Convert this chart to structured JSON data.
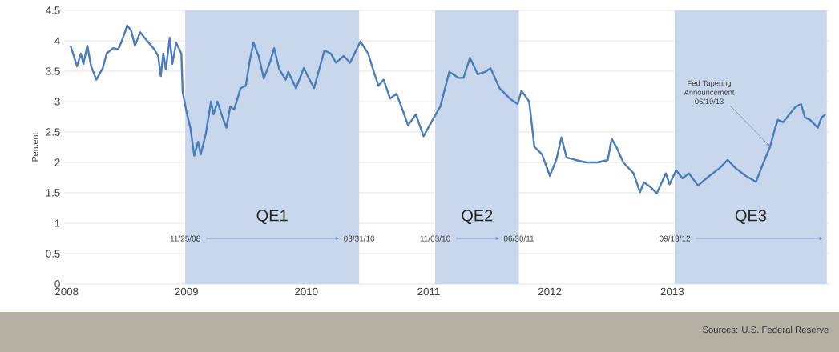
{
  "chart_data": {
    "type": "line",
    "ylabel": "Percent",
    "x": [
      2008.01,
      2008.06,
      2008.09,
      2008.11,
      2008.14,
      2008.17,
      2008.21,
      2008.26,
      2008.29,
      2008.34,
      2008.38,
      2008.41,
      2008.45,
      2008.48,
      2008.51,
      2008.55,
      2008.6,
      2008.66,
      2008.69,
      2008.71,
      2008.73,
      2008.75,
      2008.78,
      2008.8,
      2008.83,
      2008.87,
      2008.88,
      2008.91,
      2008.94,
      2008.97,
      2009.0,
      2009.02,
      2009.06,
      2009.1,
      2009.12,
      2009.15,
      2009.19,
      2009.22,
      2009.25,
      2009.28,
      2009.33,
      2009.37,
      2009.4,
      2009.43,
      2009.47,
      2009.51,
      2009.56,
      2009.59,
      2009.63,
      2009.68,
      2009.7,
      2009.76,
      2009.82,
      2009.9,
      2009.98,
      2010.03,
      2010.07,
      2010.13,
      2010.18,
      2010.26,
      2010.32,
      2010.37,
      2010.4,
      2010.44,
      2010.49,
      2010.54,
      2010.57,
      2010.63,
      2010.69,
      2010.75,
      2010.82,
      2010.88,
      2010.95,
      2011.02,
      2011.06,
      2011.11,
      2011.17,
      2011.23,
      2011.27,
      2011.34,
      2011.42,
      2011.48,
      2011.51,
      2011.57,
      2011.61,
      2011.67,
      2011.73,
      2011.78,
      2011.82,
      2011.86,
      2011.93,
      2012.01,
      2012.1,
      2012.18,
      2012.21,
      2012.25,
      2012.3,
      2012.38,
      2012.43,
      2012.46,
      2012.51,
      2012.56,
      2012.63,
      2012.66,
      2012.71,
      2012.76,
      2012.81,
      2012.88,
      2012.97,
      2013.05,
      2013.11,
      2013.17,
      2013.25,
      2013.33,
      2013.38,
      2013.44,
      2013.48,
      2013.5,
      2013.54,
      2013.59,
      2013.64,
      2013.68,
      2013.71,
      2013.75,
      2013.81,
      2013.84,
      2013.87
    ],
    "series": [
      {
        "color": "#4a7ebb",
        "values": [
          3.92,
          3.58,
          3.79,
          3.62,
          3.92,
          3.58,
          3.36,
          3.55,
          3.79,
          3.88,
          3.86,
          4.01,
          4.25,
          4.17,
          3.92,
          4.14,
          4.01,
          3.86,
          3.75,
          3.42,
          3.79,
          3.53,
          4.05,
          3.62,
          3.97,
          3.79,
          3.16,
          2.83,
          2.57,
          2.11,
          2.34,
          2.13,
          2.47,
          3.0,
          2.79,
          3.0,
          2.74,
          2.57,
          2.92,
          2.87,
          3.22,
          3.26,
          3.66,
          3.97,
          3.75,
          3.38,
          3.66,
          3.88,
          3.53,
          3.36,
          3.49,
          3.22,
          3.55,
          3.22,
          3.84,
          3.79,
          3.64,
          3.75,
          3.64,
          3.99,
          3.79,
          3.45,
          3.26,
          3.36,
          3.05,
          3.13,
          2.96,
          2.61,
          2.79,
          2.43,
          2.7,
          2.92,
          3.49,
          3.39,
          3.39,
          3.72,
          3.45,
          3.49,
          3.55,
          3.22,
          3.05,
          2.96,
          3.18,
          3.0,
          2.26,
          2.13,
          1.78,
          2.04,
          2.41,
          2.08,
          2.04,
          2.0,
          2.0,
          2.04,
          2.39,
          2.24,
          2.0,
          1.82,
          1.51,
          1.67,
          1.6,
          1.49,
          1.82,
          1.64,
          1.87,
          1.74,
          1.82,
          1.62,
          1.78,
          1.91,
          2.04,
          1.91,
          1.78,
          1.68,
          1.95,
          2.26,
          2.57,
          2.7,
          2.66,
          2.79,
          2.92,
          2.96,
          2.74,
          2.7,
          2.57,
          2.74,
          2.79
        ]
      }
    ],
    "xlim": [
      2007.96,
      2013.9
    ],
    "ylim": [
      0,
      4.5
    ],
    "xticks": [
      {
        "value": 2007.98,
        "label": "2008"
      },
      {
        "value": 2008.91,
        "label": "2009"
      },
      {
        "value": 2009.84,
        "label": "2010"
      },
      {
        "value": 2010.79,
        "label": "2011"
      },
      {
        "value": 2011.73,
        "label": "2012"
      },
      {
        "value": 2012.68,
        "label": "2013"
      }
    ],
    "yticks": [
      0,
      0.5,
      1,
      1.5,
      2,
      2.5,
      3,
      3.5,
      4,
      4.5
    ],
    "grid": "y",
    "bands": [
      {
        "axis": "x",
        "from": 2008.9,
        "to": 2010.25,
        "label": "QE1",
        "color": "#c9d7ec"
      },
      {
        "axis": "x",
        "from": 2010.84,
        "to": 2011.49,
        "label": "QE2",
        "color": "#c9d7ec"
      },
      {
        "axis": "x",
        "from": 2012.7,
        "to": 2013.88,
        "label": "QE3",
        "color": "#c9d7ec"
      }
    ],
    "annotations": [
      {
        "text": "11/25/08",
        "x": 2008.9,
        "y": 0.75
      },
      {
        "text": "03/31/10",
        "x": 2010.25,
        "y": 0.75
      },
      {
        "text": "11/03/10",
        "x": 2010.84,
        "y": 0.75
      },
      {
        "text": "06/30/11",
        "x": 2011.49,
        "y": 0.75
      },
      {
        "text": "09/13/12",
        "x": 2012.7,
        "y": 0.75
      },
      {
        "text": "Fed Tapering Announcement 06/19/13",
        "x": 2013.44,
        "y": 2.26
      },
      "Sources: U.S. Federal Reserve"
    ]
  }
}
